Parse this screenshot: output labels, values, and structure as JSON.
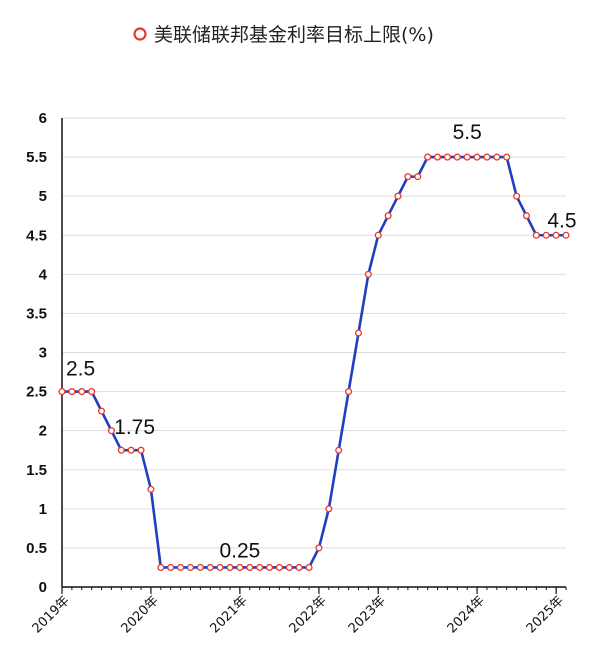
{
  "chart_data": {
    "type": "line",
    "title": "",
    "xlabel": "",
    "ylabel": "",
    "ylim": [
      0,
      6
    ],
    "yticks": [
      "0",
      "0.5",
      "1",
      "1.5",
      "2",
      "2.5",
      "3",
      "3.5",
      "4",
      "4.5",
      "5",
      "5.5",
      "6"
    ],
    "grid": true,
    "legend_position": "top-center",
    "colors": {
      "line": "#1f3fbf",
      "marker_edge": "#e53b2c",
      "marker_fill": "#ffffff",
      "grid": "#dddddd"
    },
    "x_tick_labels": [
      "2019年",
      "2020年",
      "2021年",
      "2022年",
      "2023年",
      "2024年",
      "2025年"
    ],
    "series": [
      {
        "name": "美联储联邦基金利率目标上限(%)",
        "values": [
          2.5,
          2.5,
          2.5,
          2.5,
          2.25,
          2.0,
          1.75,
          1.75,
          1.75,
          1.25,
          0.25,
          0.25,
          0.25,
          0.25,
          0.25,
          0.25,
          0.25,
          0.25,
          0.25,
          0.25,
          0.25,
          0.25,
          0.25,
          0.25,
          0.25,
          0.25,
          0.5,
          1.0,
          1.75,
          2.5,
          3.25,
          4.0,
          4.5,
          4.75,
          5.0,
          5.25,
          5.25,
          5.5,
          5.5,
          5.5,
          5.5,
          5.5,
          5.5,
          5.5,
          5.5,
          5.5,
          5.0,
          4.75,
          4.5,
          4.5,
          4.5,
          4.5
        ]
      }
    ],
    "data_labels": [
      "2.5",
      "1.75",
      "0.25",
      "5.5",
      "4.5"
    ]
  }
}
